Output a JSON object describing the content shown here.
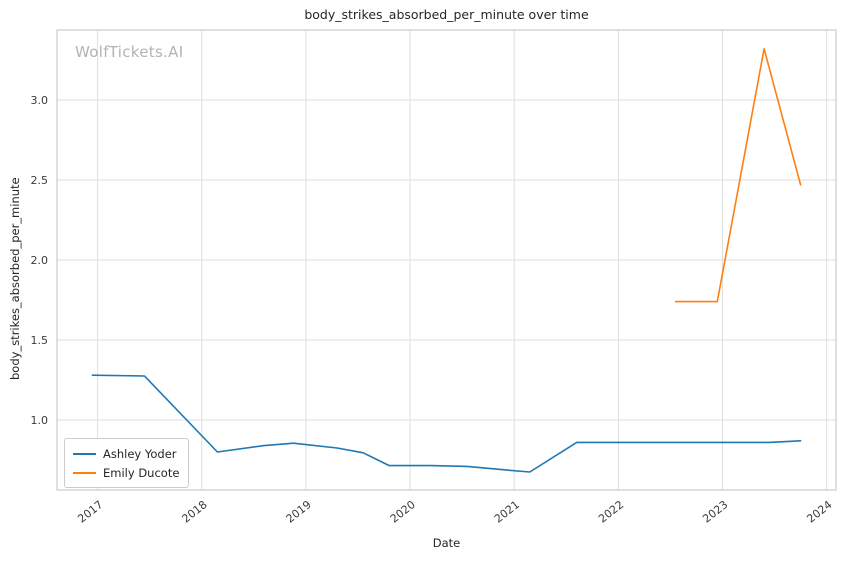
{
  "watermark": "WolfTickets.AI",
  "chart_data": {
    "type": "line",
    "title": "body_strikes_absorbed_per_minute over time",
    "xlabel": "Date",
    "ylabel": "body_strikes_absorbed_per_minute",
    "xlim": [
      2016.61,
      2024.09
    ],
    "ylim": [
      0.5625,
      3.4375
    ],
    "x_ticks": [
      2017,
      2018,
      2019,
      2020,
      2021,
      2022,
      2023,
      2024
    ],
    "y_ticks": [
      1.0,
      1.5,
      2.0,
      2.5,
      3.0
    ],
    "grid": true,
    "legend_position": "lower left",
    "colors": {
      "grid": "#dedede",
      "spine": "#cccccc",
      "tick_text": "#3b3b3b"
    },
    "series": [
      {
        "name": "Ashley Yoder",
        "color": "#1f77b4",
        "x": [
          2016.95,
          2017.45,
          2018.15,
          2018.6,
          2018.88,
          2019.3,
          2019.55,
          2019.8,
          2020.2,
          2020.55,
          2020.88,
          2021.15,
          2021.6,
          2022.3,
          2023.0,
          2023.45,
          2023.75
        ],
        "y": [
          1.28,
          1.275,
          0.8,
          0.84,
          0.855,
          0.825,
          0.795,
          0.715,
          0.715,
          0.71,
          0.69,
          0.675,
          0.86,
          0.86,
          0.86,
          0.86,
          0.87
        ]
      },
      {
        "name": "Emily Ducote",
        "color": "#ff7f0e",
        "x": [
          2022.55,
          2022.95,
          2023.4,
          2023.75
        ],
        "y": [
          1.74,
          1.74,
          3.32,
          2.47
        ]
      }
    ]
  }
}
